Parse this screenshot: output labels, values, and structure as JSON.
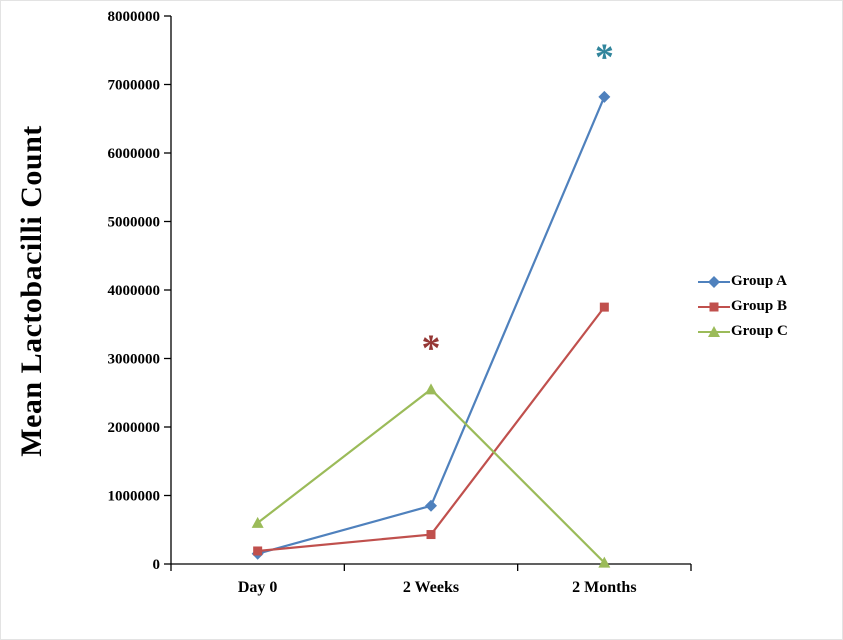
{
  "figure": {
    "background": "#ffffff"
  },
  "chart_data": {
    "type": "line",
    "title": "",
    "xlabel": "",
    "ylabel": "Mean Lactobacilli Count",
    "categories": [
      "Day 0",
      "2 Weeks",
      "2 Months"
    ],
    "series": [
      {
        "name": "Group A",
        "color": "#4f81bd",
        "marker": "diamond",
        "values": [
          150000,
          850000,
          6820000
        ]
      },
      {
        "name": "Group B",
        "color": "#c0504d",
        "marker": "square",
        "values": [
          190000,
          430000,
          3750000
        ]
      },
      {
        "name": "Group C",
        "color": "#9bbb59",
        "marker": "triangle",
        "values": [
          600000,
          2550000,
          20000
        ]
      }
    ],
    "ylim": [
      0,
      8000000
    ],
    "ytick_step": 1000000,
    "ytick_labels": [
      "0",
      "1000000",
      "2000000",
      "3000000",
      "4000000",
      "5000000",
      "6000000",
      "7000000",
      "8000000"
    ],
    "grid": false,
    "legend_position": "right",
    "annotations": [
      {
        "text": "*",
        "category_index": 1,
        "value": 3250000,
        "color": "#953735"
      },
      {
        "text": "*",
        "category_index": 2,
        "value": 7500000,
        "color": "#31859c"
      }
    ]
  }
}
